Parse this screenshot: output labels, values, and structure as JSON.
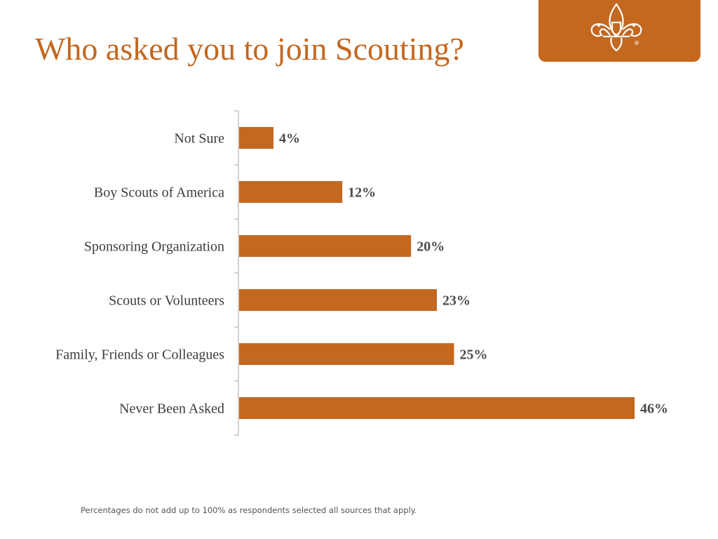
{
  "slide": {
    "title": "Who asked you to join Scouting?",
    "footnote": "Percentages do not add up to 100% as respondents selected all sources that apply.",
    "logo_icon": "fleur-de-lis-icon",
    "logo_mark": "®"
  },
  "colors": {
    "accent": "#c4671f",
    "axis": "#a6a6a6",
    "logo_fg": "#ffffff"
  },
  "chart_data": {
    "type": "bar",
    "orientation": "horizontal",
    "title": "",
    "xlabel": "",
    "ylabel": "",
    "categories": [
      "Not Sure",
      "Boy Scouts of America",
      "Sponsoring Organization",
      "Scouts or Volunteers",
      "Family, Friends or Colleagues",
      "Never Been Asked"
    ],
    "values": [
      4,
      12,
      20,
      23,
      25,
      46
    ],
    "value_labels": [
      "4%",
      "12%",
      "20%",
      "23%",
      "25%",
      "46%"
    ],
    "xlim": [
      0,
      46
    ],
    "unit": "%",
    "grid": false,
    "legend": "none"
  }
}
